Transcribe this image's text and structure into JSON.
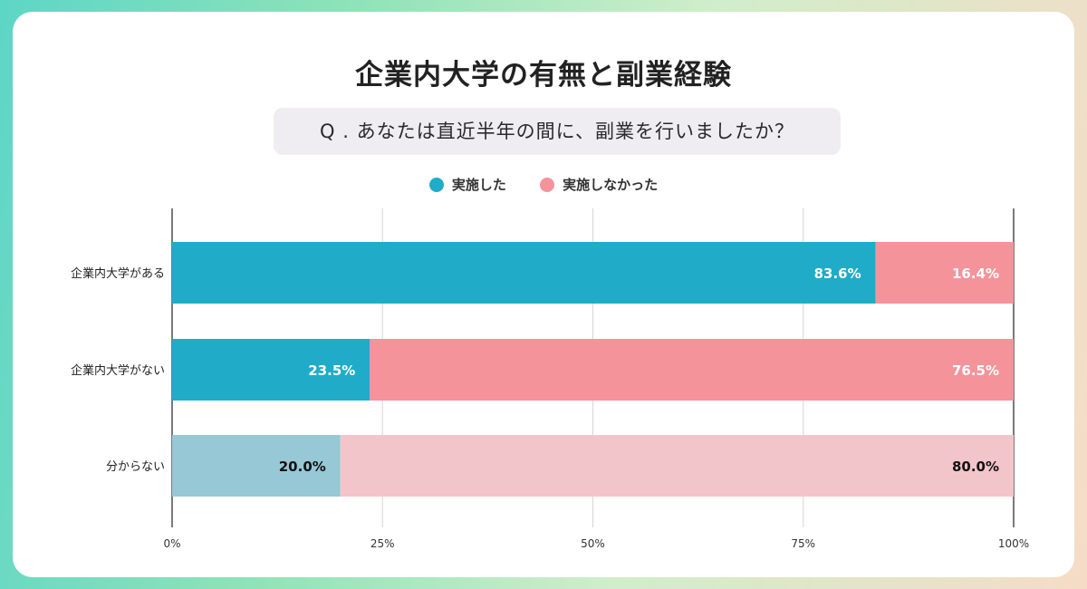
{
  "page": {
    "title": "企業内大学の有無と副業経験",
    "question": "Q . あなたは直近半年の間に、副業を行いましたか？"
  },
  "colors": {
    "done": "#20acc9",
    "not_done": "#f5939b",
    "done_light": "#96c8d5",
    "not_done_light": "#f2c5ca",
    "grid": "#d6d6d6",
    "axis": "#222222"
  },
  "chart_data": {
    "type": "bar",
    "orientation": "horizontal",
    "stacked": true,
    "categories": [
      "企業内大学がある",
      "企業内大学がない",
      "分からない"
    ],
    "series": [
      {
        "name": "実施した",
        "values": [
          83.6,
          23.5,
          20.0
        ]
      },
      {
        "name": "実施しなかった",
        "values": [
          16.4,
          76.5,
          80.0
        ]
      }
    ],
    "data_labels": [
      [
        "83.6%",
        "23.5%",
        "20.0%"
      ],
      [
        "16.4%",
        "76.5%",
        "80.0%"
      ]
    ],
    "xlim": [
      0,
      100
    ],
    "x_ticks": [
      "0%",
      "25%",
      "50%",
      "75%",
      "100%"
    ],
    "grid": true,
    "legend_position": "top"
  }
}
